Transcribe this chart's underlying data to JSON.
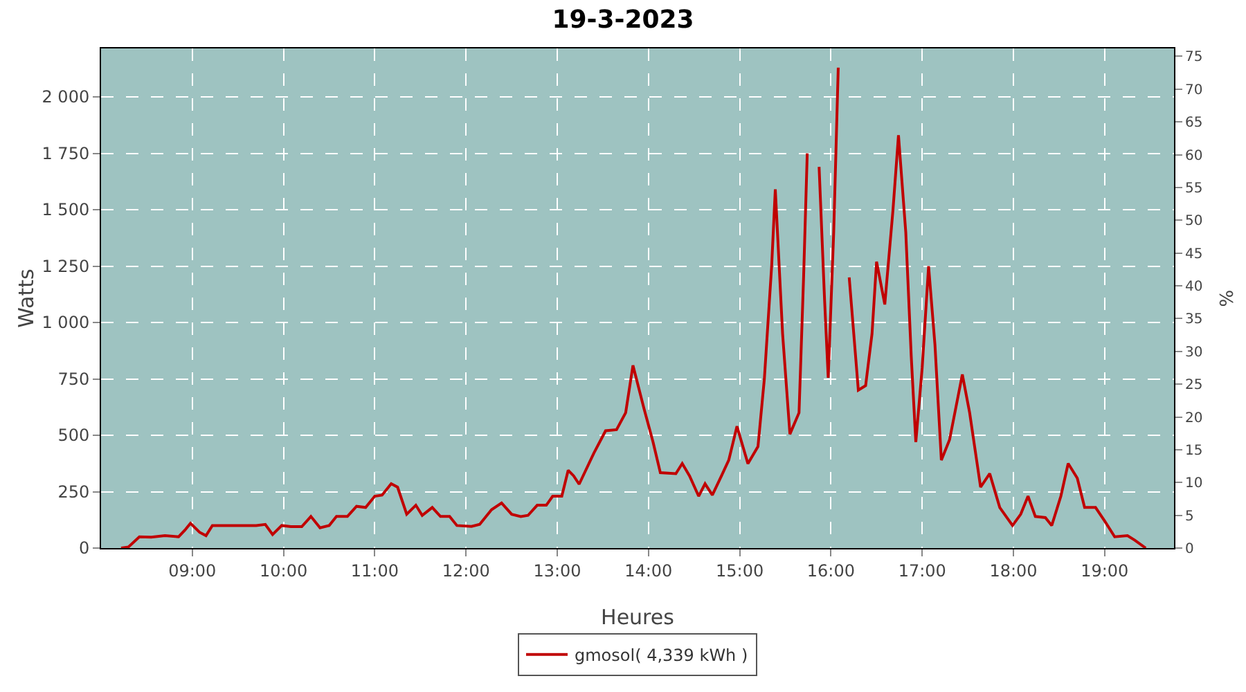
{
  "chart_data": {
    "type": "line",
    "title": "19-3-2023",
    "xlabel": "Heures",
    "ylabel": "Watts",
    "y2label": "%",
    "xlim": [
      8.0,
      19.76
    ],
    "xticks": [
      {
        "value": 9,
        "label": "09:00"
      },
      {
        "value": 10,
        "label": "10:00"
      },
      {
        "value": 11,
        "label": "11:00"
      },
      {
        "value": 12,
        "label": "12:00"
      },
      {
        "value": 13,
        "label": "13:00"
      },
      {
        "value": 14,
        "label": "14:00"
      },
      {
        "value": 15,
        "label": "15:00"
      },
      {
        "value": 16,
        "label": "16:00"
      },
      {
        "value": 17,
        "label": "17:00"
      },
      {
        "value": 18,
        "label": "18:00"
      },
      {
        "value": 19,
        "label": "19:00"
      }
    ],
    "ylim": [
      0,
      2215
    ],
    "yticks": [
      0,
      250,
      500,
      750,
      {
        "value": 1000,
        "label": "1 000"
      },
      {
        "value": 1250,
        "label": "1 250"
      },
      {
        "value": 1500,
        "label": "1 500"
      },
      {
        "value": 1750,
        "label": "1 750"
      },
      {
        "value": 2000,
        "label": "2 000"
      }
    ],
    "y2lim": [
      0,
      76.2
    ],
    "y2ticks": [
      0,
      5,
      10,
      15,
      20,
      25,
      30,
      35,
      40,
      45,
      50,
      55,
      60,
      65,
      70,
      75
    ],
    "grid": true,
    "legend": "bottom",
    "marker": "none",
    "line_style": "solid",
    "x": [
      8.22,
      8.3,
      8.42,
      8.55,
      8.7,
      8.85,
      8.92,
      8.98,
      9.08,
      9.15,
      9.22,
      9.4,
      9.7,
      9.8,
      9.88,
      9.98,
      10.08,
      10.2,
      10.3,
      10.4,
      10.5,
      10.58,
      10.7,
      10.8,
      10.9,
      11.0,
      11.08,
      11.18,
      11.25,
      11.35,
      11.45,
      11.52,
      11.63,
      11.72,
      11.82,
      11.9,
      12.06,
      12.15,
      12.28,
      12.39,
      12.5,
      12.6,
      12.68,
      12.78,
      12.88,
      12.95,
      13.05,
      13.12,
      13.18,
      13.24,
      13.4,
      13.53,
      13.65,
      13.75,
      13.83,
      13.95,
      14.05,
      14.13,
      14.3,
      14.37,
      14.45,
      14.55,
      14.62,
      14.7,
      14.8,
      14.88,
      14.97,
      15.09,
      15.2,
      15.27,
      15.35,
      15.39,
      15.47,
      15.55,
      15.65,
      15.7,
      15.74,
      15.77,
      15.81,
      15.87,
      15.93,
      15.97,
      16.03,
      16.08,
      16.11,
      16.2,
      16.3,
      16.38,
      16.45,
      16.5,
      16.59,
      16.68,
      16.74,
      16.82,
      16.88,
      16.93,
      17.0,
      17.07,
      17.14,
      17.21,
      17.3,
      17.44,
      17.52,
      17.64,
      17.74,
      17.85,
      17.99,
      18.08,
      18.16,
      18.24,
      18.35,
      18.42,
      18.52,
      18.6,
      18.7,
      18.78,
      18.9,
      19.0,
      19.11,
      19.25,
      19.33,
      19.45
    ],
    "series": [
      {
        "name": "gmosol( 4,339 kWh )",
        "color": "#c00000",
        "values": [
          0,
          5,
          50,
          48,
          55,
          50,
          80,
          110,
          70,
          55,
          100,
          100,
          100,
          105,
          60,
          100,
          95,
          95,
          140,
          90,
          100,
          140,
          140,
          185,
          180,
          230,
          235,
          285,
          270,
          150,
          190,
          145,
          180,
          140,
          140,
          100,
          96,
          105,
          170,
          200,
          150,
          140,
          145,
          190,
          190,
          230,
          230,
          345,
          320,
          283,
          420,
          520,
          525,
          600,
          810,
          620,
          470,
          334,
          330,
          375,
          320,
          230,
          285,
          235,
          320,
          390,
          540,
          374,
          450,
          750,
          1250,
          1590,
          950,
          505,
          600,
          1200,
          1750,
          null,
          null,
          1690,
          1100,
          755,
          1400,
          2130,
          null,
          1200,
          700,
          720,
          950,
          1270,
          1080,
          1500,
          1830,
          1400,
          850,
          470,
          800,
          1250,
          900,
          390,
          480,
          770,
          600,
          270,
          330,
          180,
          100,
          150,
          230,
          140,
          135,
          100,
          230,
          375,
          310,
          180,
          180,
          120,
          50,
          55,
          35,
          0
        ]
      }
    ]
  }
}
